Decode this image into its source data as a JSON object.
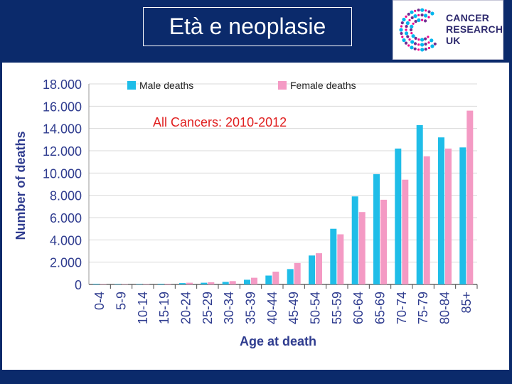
{
  "slide": {
    "title": "Età e neoplasie"
  },
  "logo": {
    "line1": "CANCER",
    "line2": "RESEARCH",
    "line3": "UK",
    "colors": [
      "#ec008c",
      "#6e2c91",
      "#00b6ed",
      "#2e2a6e"
    ]
  },
  "chart_data": {
    "type": "bar",
    "title": "All Cancers: 2010-2012",
    "xlabel": "Age at death",
    "ylabel": "Number of deaths",
    "ylim": [
      0,
      18000
    ],
    "yticks": [
      "0",
      "2.000",
      "4.000",
      "6.000",
      "8.000",
      "10.000",
      "12.000",
      "14.000",
      "16.000",
      "18.000"
    ],
    "ytick_values": [
      0,
      2000,
      4000,
      6000,
      8000,
      10000,
      12000,
      14000,
      16000,
      18000
    ],
    "grid": true,
    "legend_position": "top",
    "categories": [
      "0-4",
      "5-9",
      "10-14",
      "15-19",
      "20-24",
      "25-29",
      "30-34",
      "35-39",
      "40-44",
      "45-49",
      "50-54",
      "55-59",
      "60-64",
      "65-69",
      "70-74",
      "75-79",
      "80-84",
      "85+"
    ],
    "series": [
      {
        "name": "Male deaths",
        "color": "#1fbde8",
        "values": [
          50,
          40,
          40,
          60,
          120,
          150,
          230,
          420,
          800,
          1380,
          2600,
          5000,
          7900,
          9900,
          12200,
          14300,
          13200,
          12300
        ]
      },
      {
        "name": "Female deaths",
        "color": "#f49ac4",
        "values": [
          40,
          30,
          40,
          60,
          150,
          200,
          300,
          600,
          1150,
          1920,
          2800,
          4500,
          6500,
          7600,
          9400,
          11500,
          12200,
          15600
        ]
      }
    ]
  }
}
